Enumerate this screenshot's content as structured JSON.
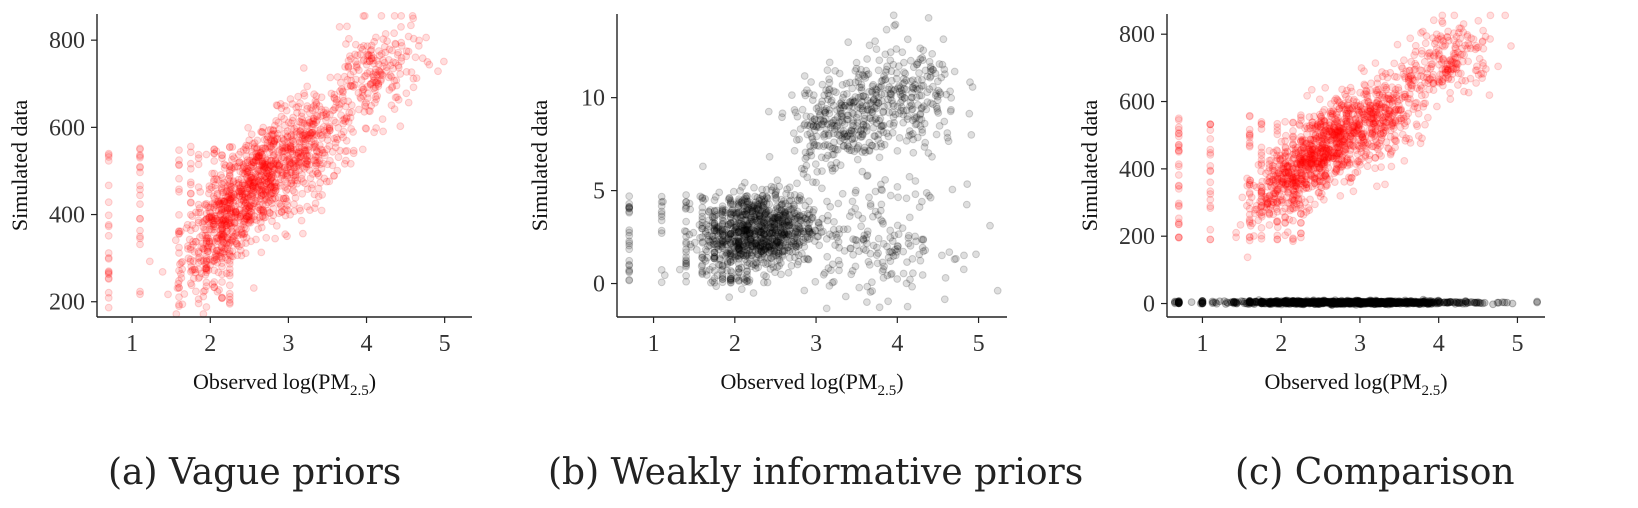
{
  "chart_data": [
    {
      "type": "scatter",
      "caption": "(a) Vague priors",
      "xlabel_prefix": "Observed log(PM",
      "xlabel_sub": "2.5",
      "xlabel_suffix": ")",
      "ylabel": "Simulated data",
      "xlim": [
        0.55,
        5.35
      ],
      "ylim": [
        165,
        860
      ],
      "xticks": [
        1,
        2,
        3,
        4,
        5
      ],
      "yticks": [
        200,
        400,
        600,
        800
      ],
      "grid": false,
      "legend": "none",
      "point_color": "#ff0000",
      "point_opacity": 0.13,
      "series": [
        {
          "clusters": [
            {
              "x_mean": 2.2,
              "x_sd": 0.28,
              "y_mean": 385,
              "y_sd": 55,
              "n": 450,
              "slope": 160
            },
            {
              "x_mean": 2.7,
              "x_sd": 0.25,
              "y_mean": 490,
              "y_sd": 60,
              "n": 450,
              "slope": 120
            },
            {
              "x_mean": 3.3,
              "x_sd": 0.25,
              "y_mean": 555,
              "y_sd": 60,
              "n": 300,
              "slope": 90
            },
            {
              "x_mean": 4.1,
              "x_sd": 0.3,
              "y_mean": 720,
              "y_sd": 55,
              "n": 220,
              "slope": 60
            }
          ],
          "x_columns": [
            0.7,
            1.1,
            1.6,
            1.75,
            1.85,
            1.95,
            2.05,
            2.15,
            2.25
          ],
          "column_y_range": [
            185,
            560
          ],
          "column_n": 180
        }
      ]
    },
    {
      "type": "scatter",
      "caption": "(b) Weakly informative priors",
      "xlabel_prefix": "Observed log(PM",
      "xlabel_sub": "2.5",
      "xlabel_suffix": ")",
      "ylabel": "Simulated data",
      "xlim": [
        0.55,
        5.35
      ],
      "ylim": [
        -1.8,
        14.5
      ],
      "xticks": [
        1,
        2,
        3,
        4,
        5
      ],
      "yticks": [
        0,
        5,
        10
      ],
      "grid": false,
      "legend": "none",
      "point_color": "#000000",
      "point_opacity": 0.13,
      "series": [
        {
          "clusters": [
            {
              "x_mean": 2.3,
              "x_sd": 0.35,
              "y_mean": 2.8,
              "y_sd": 1.1,
              "n": 900,
              "slope": 0.6
            },
            {
              "x_mean": 3.3,
              "x_sd": 0.3,
              "y_mean": 8.8,
              "y_sd": 1.3,
              "n": 300,
              "slope": 0.8
            },
            {
              "x_mean": 4.1,
              "x_sd": 0.35,
              "y_mean": 9.8,
              "y_sd": 1.6,
              "n": 260,
              "slope": 0.5
            },
            {
              "x_mean": 3.8,
              "x_sd": 0.45,
              "y_mean": 2.2,
              "y_sd": 1.5,
              "n": 170,
              "slope": 0
            }
          ],
          "x_columns": [
            0.7,
            1.1,
            1.4,
            1.6,
            1.75,
            1.85,
            1.95,
            2.05,
            2.15
          ],
          "column_y_range": [
            0.0,
            4.8
          ],
          "column_n": 200
        }
      ]
    },
    {
      "type": "scatter",
      "caption": "(c) Comparison",
      "xlabel_prefix": "Observed log(PM",
      "xlabel_sub": "2.5",
      "xlabel_suffix": ")",
      "ylabel": "Simulated data",
      "xlim": [
        0.55,
        5.35
      ],
      "ylim": [
        -40,
        860
      ],
      "xticks": [
        1,
        2,
        3,
        4,
        5
      ],
      "yticks": [
        0,
        200,
        400,
        600,
        800
      ],
      "grid": false,
      "legend": "none",
      "series": [
        {
          "name": "",
          "point_color": "#ff0000",
          "point_opacity": 0.13,
          "clusters": [
            {
              "x_mean": 2.2,
              "x_sd": 0.28,
              "y_mean": 385,
              "y_sd": 55,
              "n": 450,
              "slope": 160
            },
            {
              "x_mean": 2.7,
              "x_sd": 0.25,
              "y_mean": 490,
              "y_sd": 60,
              "n": 450,
              "slope": 120
            },
            {
              "x_mean": 3.3,
              "x_sd": 0.25,
              "y_mean": 555,
              "y_sd": 60,
              "n": 300,
              "slope": 90
            },
            {
              "x_mean": 4.1,
              "x_sd": 0.3,
              "y_mean": 720,
              "y_sd": 55,
              "n": 220,
              "slope": 60
            }
          ],
          "x_columns": [
            0.7,
            1.1,
            1.6,
            1.75,
            1.85,
            1.95,
            2.05,
            2.15,
            2.25
          ],
          "column_y_range": [
            185,
            560
          ],
          "column_n": 180
        },
        {
          "name": "",
          "point_color": "#000000",
          "point_opacity": 0.2,
          "clusters": [
            {
              "x_mean": 2.9,
              "x_sd": 0.75,
              "y_mean": 3,
              "y_sd": 2.5,
              "n": 900,
              "slope": 0
            }
          ],
          "x_columns": [
            0.7,
            1.0,
            1.4,
            1.6,
            1.75,
            1.85,
            1.95,
            2.05,
            2.15
          ],
          "column_y_range": [
            0,
            8
          ],
          "column_n": 80
        }
      ]
    }
  ]
}
